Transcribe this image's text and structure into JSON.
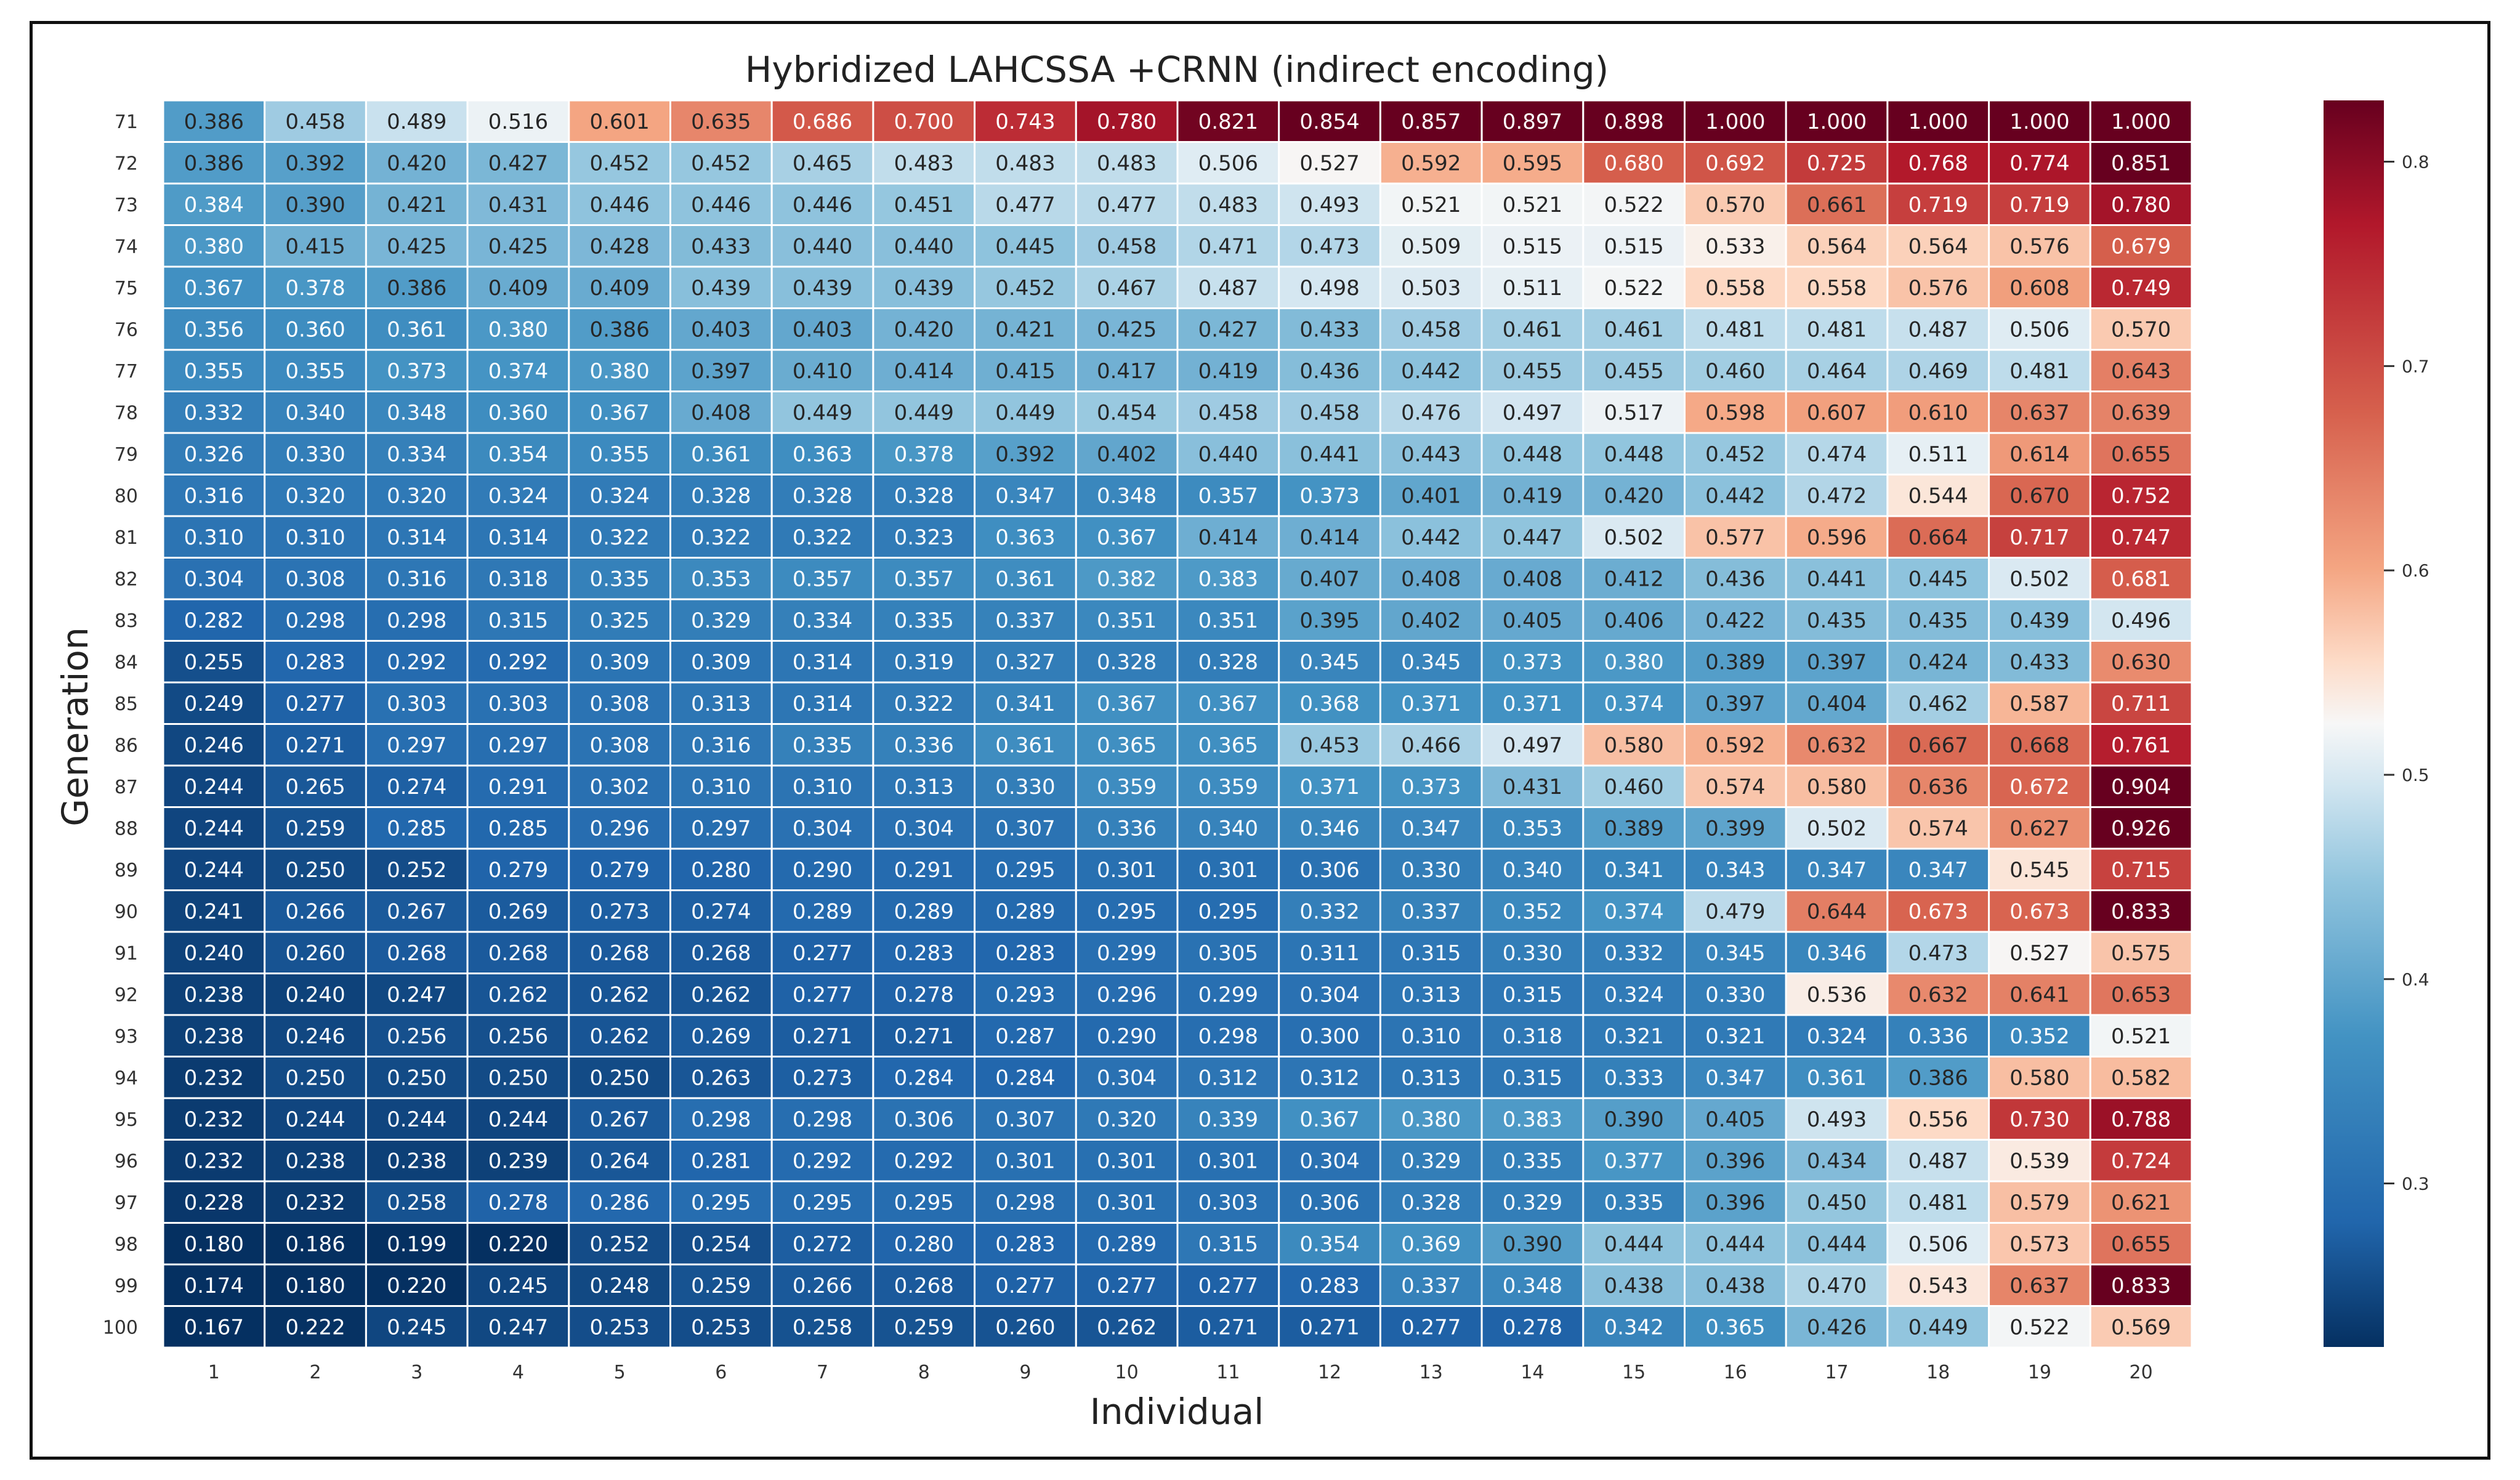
{
  "chart_data": {
    "type": "heatmap",
    "title": "Hybridized LAHCSSA +CRNN (indirect encoding)",
    "xlabel": "Individual",
    "ylabel": "Generation",
    "x": [
      "1",
      "2",
      "3",
      "4",
      "5",
      "6",
      "7",
      "8",
      "9",
      "10",
      "11",
      "12",
      "13",
      "14",
      "15",
      "16",
      "17",
      "18",
      "19",
      "20"
    ],
    "y": [
      "71",
      "72",
      "73",
      "74",
      "75",
      "76",
      "77",
      "78",
      "79",
      "80",
      "81",
      "82",
      "83",
      "84",
      "85",
      "86",
      "87",
      "88",
      "89",
      "90",
      "91",
      "92",
      "93",
      "94",
      "95",
      "96",
      "97",
      "98",
      "99",
      "100"
    ],
    "values": [
      [
        "0.386",
        "0.458",
        "0.489",
        "0.516",
        "0.601",
        "0.635",
        "0.686",
        "0.700",
        "0.743",
        "0.780",
        "0.821",
        "0.854",
        "0.857",
        "0.897",
        "0.898",
        "1.000",
        "1.000",
        "1.000",
        "1.000",
        "1.000"
      ],
      [
        "0.386",
        "0.392",
        "0.420",
        "0.427",
        "0.452",
        "0.452",
        "0.465",
        "0.483",
        "0.483",
        "0.483",
        "0.506",
        "0.527",
        "0.592",
        "0.595",
        "0.680",
        "0.692",
        "0.725",
        "0.768",
        "0.774",
        "0.851"
      ],
      [
        "0.384",
        "0.390",
        "0.421",
        "0.431",
        "0.446",
        "0.446",
        "0.446",
        "0.451",
        "0.477",
        "0.477",
        "0.483",
        "0.493",
        "0.521",
        "0.521",
        "0.522",
        "0.570",
        "0.661",
        "0.719",
        "0.719",
        "0.780"
      ],
      [
        "0.380",
        "0.415",
        "0.425",
        "0.425",
        "0.428",
        "0.433",
        "0.440",
        "0.440",
        "0.445",
        "0.458",
        "0.471",
        "0.473",
        "0.509",
        "0.515",
        "0.515",
        "0.533",
        "0.564",
        "0.564",
        "0.576",
        "0.679"
      ],
      [
        "0.367",
        "0.378",
        "0.386",
        "0.409",
        "0.409",
        "0.439",
        "0.439",
        "0.439",
        "0.452",
        "0.467",
        "0.487",
        "0.498",
        "0.503",
        "0.511",
        "0.522",
        "0.558",
        "0.558",
        "0.576",
        "0.608",
        "0.749"
      ],
      [
        "0.356",
        "0.360",
        "0.361",
        "0.380",
        "0.386",
        "0.403",
        "0.403",
        "0.420",
        "0.421",
        "0.425",
        "0.427",
        "0.433",
        "0.458",
        "0.461",
        "0.461",
        "0.481",
        "0.481",
        "0.487",
        "0.506",
        "0.570"
      ],
      [
        "0.355",
        "0.355",
        "0.373",
        "0.374",
        "0.380",
        "0.397",
        "0.410",
        "0.414",
        "0.415",
        "0.417",
        "0.419",
        "0.436",
        "0.442",
        "0.455",
        "0.455",
        "0.460",
        "0.464",
        "0.469",
        "0.481",
        "0.643"
      ],
      [
        "0.332",
        "0.340",
        "0.348",
        "0.360",
        "0.367",
        "0.408",
        "0.449",
        "0.449",
        "0.449",
        "0.454",
        "0.458",
        "0.458",
        "0.476",
        "0.497",
        "0.517",
        "0.598",
        "0.607",
        "0.610",
        "0.637",
        "0.639"
      ],
      [
        "0.326",
        "0.330",
        "0.334",
        "0.354",
        "0.355",
        "0.361",
        "0.363",
        "0.378",
        "0.392",
        "0.402",
        "0.440",
        "0.441",
        "0.443",
        "0.448",
        "0.448",
        "0.452",
        "0.474",
        "0.511",
        "0.614",
        "0.655"
      ],
      [
        "0.316",
        "0.320",
        "0.320",
        "0.324",
        "0.324",
        "0.328",
        "0.328",
        "0.328",
        "0.347",
        "0.348",
        "0.357",
        "0.373",
        "0.401",
        "0.419",
        "0.420",
        "0.442",
        "0.472",
        "0.544",
        "0.670",
        "0.752"
      ],
      [
        "0.310",
        "0.310",
        "0.314",
        "0.314",
        "0.322",
        "0.322",
        "0.322",
        "0.323",
        "0.363",
        "0.367",
        "0.414",
        "0.414",
        "0.442",
        "0.447",
        "0.502",
        "0.577",
        "0.596",
        "0.664",
        "0.717",
        "0.747"
      ],
      [
        "0.304",
        "0.308",
        "0.316",
        "0.318",
        "0.335",
        "0.353",
        "0.357",
        "0.357",
        "0.361",
        "0.382",
        "0.383",
        "0.407",
        "0.408",
        "0.408",
        "0.412",
        "0.436",
        "0.441",
        "0.445",
        "0.502",
        "0.681"
      ],
      [
        "0.282",
        "0.298",
        "0.298",
        "0.315",
        "0.325",
        "0.329",
        "0.334",
        "0.335",
        "0.337",
        "0.351",
        "0.351",
        "0.395",
        "0.402",
        "0.405",
        "0.406",
        "0.422",
        "0.435",
        "0.435",
        "0.439",
        "0.496"
      ],
      [
        "0.255",
        "0.283",
        "0.292",
        "0.292",
        "0.309",
        "0.309",
        "0.314",
        "0.319",
        "0.327",
        "0.328",
        "0.328",
        "0.345",
        "0.345",
        "0.373",
        "0.380",
        "0.389",
        "0.397",
        "0.424",
        "0.433",
        "0.630"
      ],
      [
        "0.249",
        "0.277",
        "0.303",
        "0.303",
        "0.308",
        "0.313",
        "0.314",
        "0.322",
        "0.341",
        "0.367",
        "0.367",
        "0.368",
        "0.371",
        "0.371",
        "0.374",
        "0.397",
        "0.404",
        "0.462",
        "0.587",
        "0.711"
      ],
      [
        "0.246",
        "0.271",
        "0.297",
        "0.297",
        "0.308",
        "0.316",
        "0.335",
        "0.336",
        "0.361",
        "0.365",
        "0.365",
        "0.453",
        "0.466",
        "0.497",
        "0.580",
        "0.592",
        "0.632",
        "0.667",
        "0.668",
        "0.761"
      ],
      [
        "0.244",
        "0.265",
        "0.274",
        "0.291",
        "0.302",
        "0.310",
        "0.310",
        "0.313",
        "0.330",
        "0.359",
        "0.359",
        "0.371",
        "0.373",
        "0.431",
        "0.460",
        "0.574",
        "0.580",
        "0.636",
        "0.672",
        "0.904"
      ],
      [
        "0.244",
        "0.259",
        "0.285",
        "0.285",
        "0.296",
        "0.297",
        "0.304",
        "0.304",
        "0.307",
        "0.336",
        "0.340",
        "0.346",
        "0.347",
        "0.353",
        "0.389",
        "0.399",
        "0.502",
        "0.574",
        "0.627",
        "0.926"
      ],
      [
        "0.244",
        "0.250",
        "0.252",
        "0.279",
        "0.279",
        "0.280",
        "0.290",
        "0.291",
        "0.295",
        "0.301",
        "0.301",
        "0.306",
        "0.330",
        "0.340",
        "0.341",
        "0.343",
        "0.347",
        "0.347",
        "0.545",
        "0.715"
      ],
      [
        "0.241",
        "0.266",
        "0.267",
        "0.269",
        "0.273",
        "0.274",
        "0.289",
        "0.289",
        "0.289",
        "0.295",
        "0.295",
        "0.332",
        "0.337",
        "0.352",
        "0.374",
        "0.479",
        "0.644",
        "0.673",
        "0.673",
        "0.833"
      ],
      [
        "0.240",
        "0.260",
        "0.268",
        "0.268",
        "0.268",
        "0.268",
        "0.277",
        "0.283",
        "0.283",
        "0.299",
        "0.305",
        "0.311",
        "0.315",
        "0.330",
        "0.332",
        "0.345",
        "0.346",
        "0.473",
        "0.527",
        "0.575"
      ],
      [
        "0.238",
        "0.240",
        "0.247",
        "0.262",
        "0.262",
        "0.262",
        "0.277",
        "0.278",
        "0.293",
        "0.296",
        "0.299",
        "0.304",
        "0.313",
        "0.315",
        "0.324",
        "0.330",
        "0.536",
        "0.632",
        "0.641",
        "0.653"
      ],
      [
        "0.238",
        "0.246",
        "0.256",
        "0.256",
        "0.262",
        "0.269",
        "0.271",
        "0.271",
        "0.287",
        "0.290",
        "0.298",
        "0.300",
        "0.310",
        "0.318",
        "0.321",
        "0.321",
        "0.324",
        "0.336",
        "0.352",
        "0.521"
      ],
      [
        "0.232",
        "0.250",
        "0.250",
        "0.250",
        "0.250",
        "0.263",
        "0.273",
        "0.284",
        "0.284",
        "0.304",
        "0.312",
        "0.312",
        "0.313",
        "0.315",
        "0.333",
        "0.347",
        "0.361",
        "0.386",
        "0.580",
        "0.582"
      ],
      [
        "0.232",
        "0.244",
        "0.244",
        "0.244",
        "0.267",
        "0.298",
        "0.298",
        "0.306",
        "0.307",
        "0.320",
        "0.339",
        "0.367",
        "0.380",
        "0.383",
        "0.390",
        "0.405",
        "0.493",
        "0.556",
        "0.730",
        "0.788"
      ],
      [
        "0.232",
        "0.238",
        "0.238",
        "0.239",
        "0.264",
        "0.281",
        "0.292",
        "0.292",
        "0.301",
        "0.301",
        "0.301",
        "0.304",
        "0.329",
        "0.335",
        "0.377",
        "0.396",
        "0.434",
        "0.487",
        "0.539",
        "0.724"
      ],
      [
        "0.228",
        "0.232",
        "0.258",
        "0.278",
        "0.286",
        "0.295",
        "0.295",
        "0.295",
        "0.298",
        "0.301",
        "0.303",
        "0.306",
        "0.328",
        "0.329",
        "0.335",
        "0.396",
        "0.450",
        "0.481",
        "0.579",
        "0.621"
      ],
      [
        "0.180",
        "0.186",
        "0.199",
        "0.220",
        "0.252",
        "0.254",
        "0.272",
        "0.280",
        "0.283",
        "0.289",
        "0.315",
        "0.354",
        "0.369",
        "0.390",
        "0.444",
        "0.444",
        "0.444",
        "0.506",
        "0.573",
        "0.655"
      ],
      [
        "0.174",
        "0.180",
        "0.220",
        "0.245",
        "0.248",
        "0.259",
        "0.266",
        "0.268",
        "0.277",
        "0.277",
        "0.277",
        "0.283",
        "0.337",
        "0.348",
        "0.438",
        "0.438",
        "0.470",
        "0.543",
        "0.637",
        "0.833"
      ],
      [
        "0.167",
        "0.222",
        "0.245",
        "0.247",
        "0.253",
        "0.253",
        "0.258",
        "0.259",
        "0.260",
        "0.262",
        "0.271",
        "0.271",
        "0.277",
        "0.278",
        "0.342",
        "0.365",
        "0.426",
        "0.449",
        "0.522",
        "0.569"
      ]
    ],
    "colormap": "RdBu_r",
    "vmin": 0.22,
    "vmax": 0.83,
    "colorbar": {
      "ticks": [
        "0.3",
        "0.4",
        "0.5",
        "0.6",
        "0.7",
        "0.8"
      ]
    },
    "annotated": true,
    "grid_lines": "white"
  }
}
